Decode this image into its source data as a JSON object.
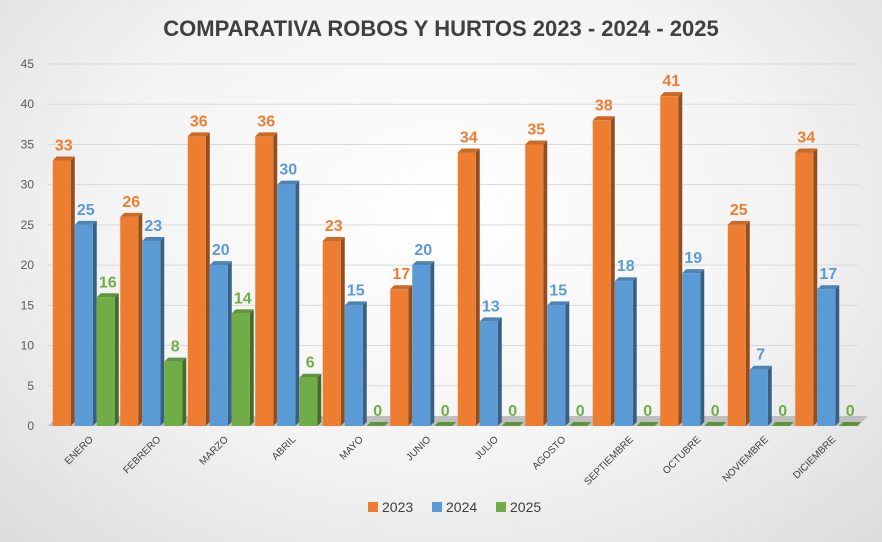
{
  "chart_data": {
    "type": "bar",
    "title": "COMPARATIVA ROBOS Y HURTOS 2023 - 2024 - 2025",
    "categories": [
      "ENERO",
      "FEBRERO",
      "MARZO",
      "ABRIL",
      "MAYO",
      "JUNIO",
      "JULIO",
      "AGOSTO",
      "SEPTIEMBRE",
      "OCTUBRE",
      "NOVIEMBRE",
      "DICIEMBRE"
    ],
    "series": [
      {
        "name": "2023",
        "color": "#ed7d31",
        "values": [
          33,
          26,
          36,
          36,
          23,
          17,
          34,
          35,
          38,
          41,
          25,
          34
        ]
      },
      {
        "name": "2024",
        "color": "#5b9bd5",
        "values": [
          25,
          23,
          20,
          30,
          15,
          20,
          13,
          15,
          18,
          19,
          7,
          17
        ]
      },
      {
        "name": "2025",
        "color": "#70ad47",
        "values": [
          16,
          8,
          14,
          6,
          0,
          0,
          0,
          0,
          0,
          0,
          0,
          0
        ]
      }
    ],
    "ylim": [
      0,
      45
    ],
    "yticks": [
      0,
      5,
      10,
      15,
      20,
      25,
      30,
      35,
      40,
      45
    ],
    "grid": true,
    "legend_position": "bottom",
    "style": "3d-clustered-column"
  }
}
